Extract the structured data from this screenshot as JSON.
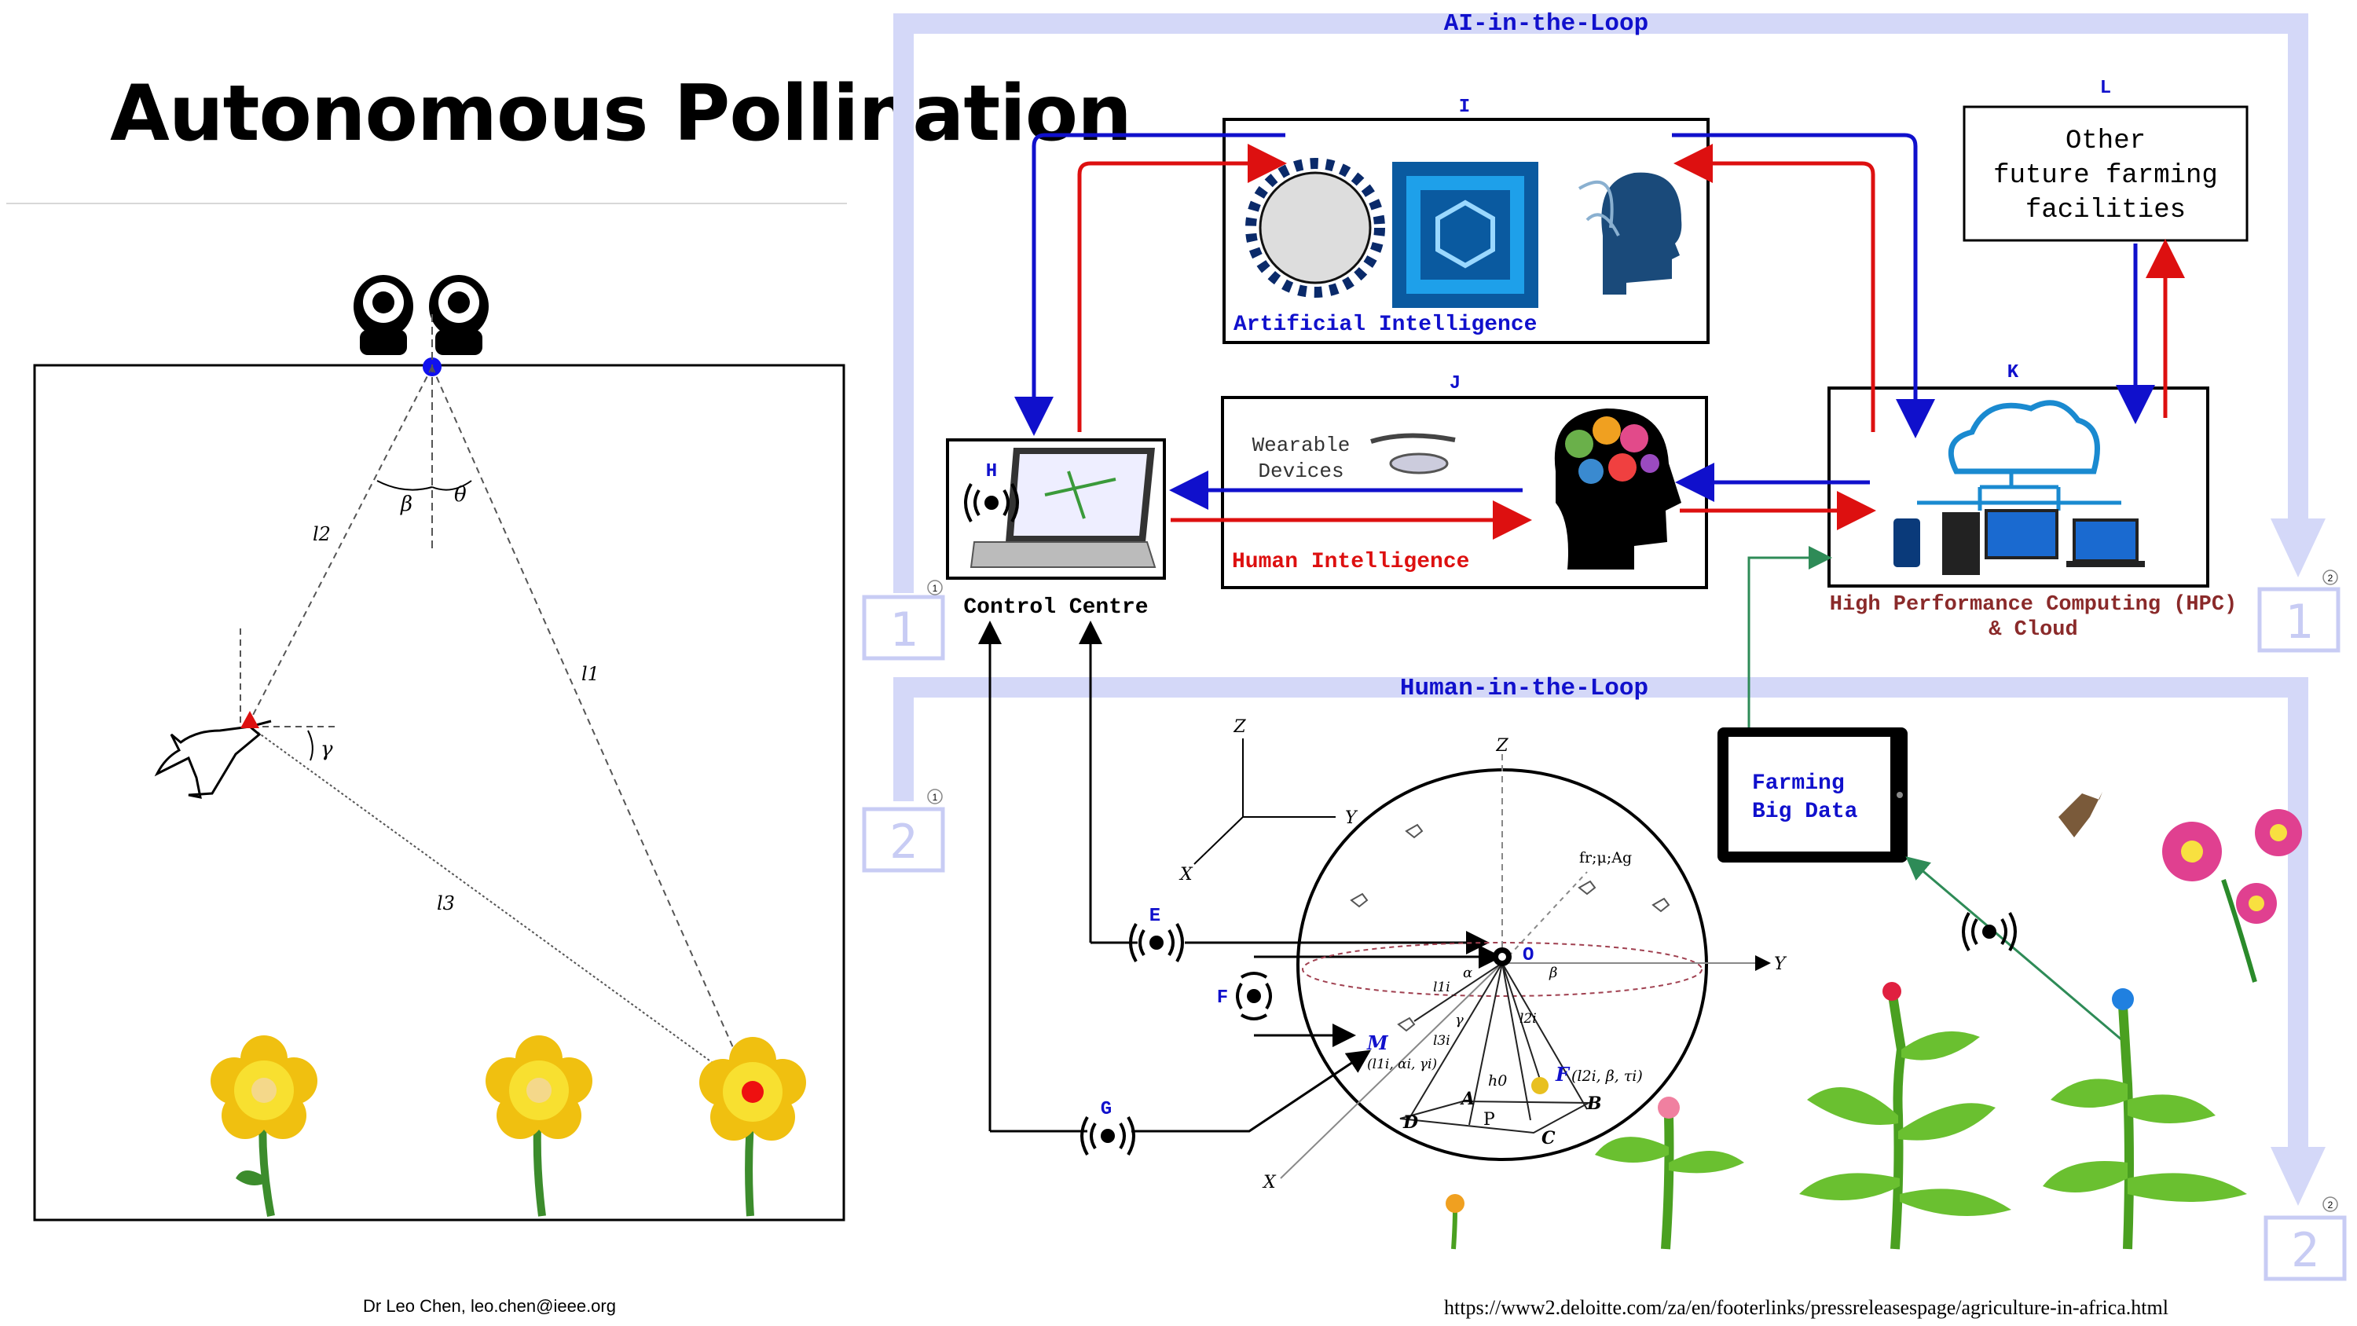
{
  "slide": {
    "title": "Autonomous Pollination",
    "footer_author": "Dr Leo Chen, leo.chen@ieee.org",
    "footer_url": "https://www2.deloitte.com/za/en/footerlinks/pressreleasespage/agriculture-in-africa.html"
  },
  "geometry_panel": {
    "angle_beta": "β",
    "angle_theta": "θ",
    "angle_gamma": "γ",
    "line_l1": "l1",
    "line_l2": "l2",
    "line_l3": "l3"
  },
  "loops": {
    "ai_loop": "AI-in-the-Loop",
    "human_loop": "Human-in-the-Loop",
    "badge_1": "1",
    "badge_2": "2",
    "small_1": "1",
    "small_2": "2"
  },
  "nodes": {
    "I": {
      "letter": "I",
      "caption": "Artificial Intelligence"
    },
    "J": {
      "letter": "J",
      "wearable_line1": "Wearable",
      "wearable_line2": "Devices",
      "caption": "Human Intelligence"
    },
    "K": {
      "letter": "K",
      "caption_line1": "High Performance Computing (HPC)",
      "caption_line2": "& Cloud"
    },
    "L": {
      "letter": "L",
      "line1": "Other",
      "line2": "future farming",
      "line3": "facilities"
    },
    "H": {
      "letter": "H",
      "caption": "Control Centre"
    },
    "E": {
      "letter": "E"
    },
    "F": {
      "letter": "F"
    },
    "G": {
      "letter": "G"
    },
    "bigdata": {
      "line1": "Farming",
      "line2": "Big Data"
    }
  },
  "sphere": {
    "axis_z": "Z",
    "axis_y": "Y",
    "axis_x": "X",
    "origin": "O",
    "frame_z": "Z",
    "frame_y": "Y",
    "frame_x": "X",
    "force_label": "fr;μ;Ag",
    "m_label": "M",
    "m_params": "(l1i, αi, γi)",
    "f_label": "F",
    "f_params": "(l2i, β, τi)",
    "h0": "h0",
    "p": "P",
    "a": "A",
    "b": "B",
    "c": "C",
    "d": "D",
    "l1i": "l1i",
    "l2i": "l2i",
    "l3i": "l3i",
    "alpha": "α",
    "beta": "β",
    "gamma": "γ"
  },
  "colors": {
    "blue": "#1010cc",
    "red": "#dd1010",
    "loop": "#d4d8f8",
    "green_arrow": "#2e8b57"
  }
}
